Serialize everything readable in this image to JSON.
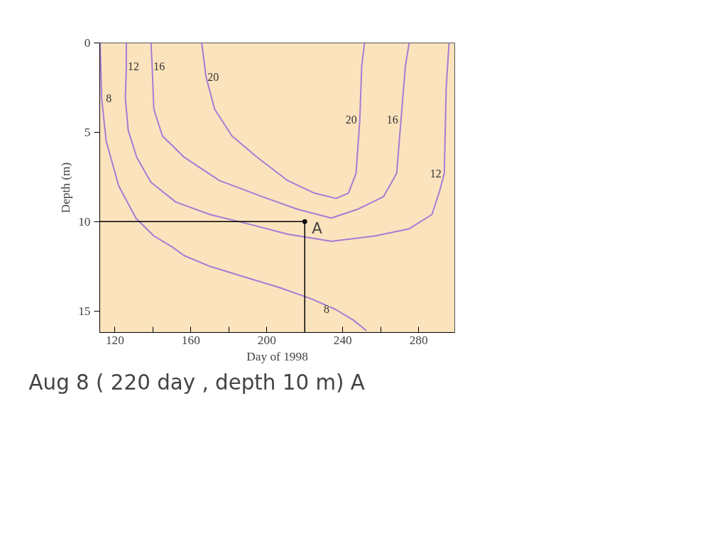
{
  "chart_data": {
    "type": "line",
    "xlabel": "Day of 1998",
    "ylabel": "Depth (m)",
    "xlim": [
      112,
      299
    ],
    "ylim": [
      16.2,
      0
    ],
    "xticks": [
      120,
      {
        "value": 140,
        "label": null
      },
      160,
      {
        "value": 180,
        "label": null
      },
      200,
      {
        "value": 220,
        "label": null
      },
      240,
      {
        "value": 260,
        "label": null
      },
      280
    ],
    "yticks": [
      0,
      5,
      10,
      15
    ],
    "grid": false,
    "marker": "none",
    "line_style": "solid",
    "series": [
      {
        "name": "8",
        "color": "#a77bd6",
        "x": [
          112.2,
          113,
          115.4,
          122,
          131,
          140.5,
          150,
          156.5,
          170,
          188.5,
          207,
          223,
          236,
          245.5,
          252.5
        ],
        "values": [
          0,
          3.1,
          5.5,
          8,
          9.8,
          10.8,
          11.4,
          11.9,
          12.5,
          13.1,
          13.7,
          14.3,
          14.9,
          15.5,
          16.1
        ]
      },
      {
        "name": "12",
        "color": "#a77bd6",
        "x": [
          126,
          126,
          125.5,
          127,
          131.5,
          139,
          152,
          170,
          193,
          211,
          234,
          257,
          275,
          287,
          291,
          293.5,
          294.5,
          296
        ],
        "values": [
          0,
          1.3,
          3.1,
          4.9,
          6.4,
          7.8,
          8.9,
          9.6,
          10.2,
          10.7,
          11.1,
          10.8,
          10.4,
          9.6,
          8.3,
          7.3,
          2.5,
          0
        ]
      },
      {
        "name": "16",
        "color": "#a77bd6",
        "x": [
          139,
          139.6,
          140.5,
          145,
          156.5,
          175,
          197.6,
          216,
          234,
          248,
          261.5,
          268.4,
          270.7,
          273,
          275
        ],
        "values": [
          0,
          1.3,
          3.7,
          5.2,
          6.4,
          7.7,
          8.6,
          9.3,
          9.8,
          9.3,
          8.6,
          7.3,
          4.3,
          1.3,
          0
        ]
      },
      {
        "name": "20",
        "color": "#a77bd6",
        "x": [
          165.7,
          168,
          172.5,
          181.6,
          195,
          211,
          225,
          236.5,
          243,
          247,
          249,
          250,
          251.5
        ],
        "values": [
          0,
          1.9,
          3.7,
          5.2,
          6.4,
          7.7,
          8.4,
          8.7,
          8.4,
          7.3,
          4.3,
          1.3,
          0
        ]
      }
    ],
    "annotations": [
      {
        "text": "A",
        "x": 220,
        "y": 10
      },
      "Aug 8 ( 220 day , depth 10 m) A"
    ]
  }
}
